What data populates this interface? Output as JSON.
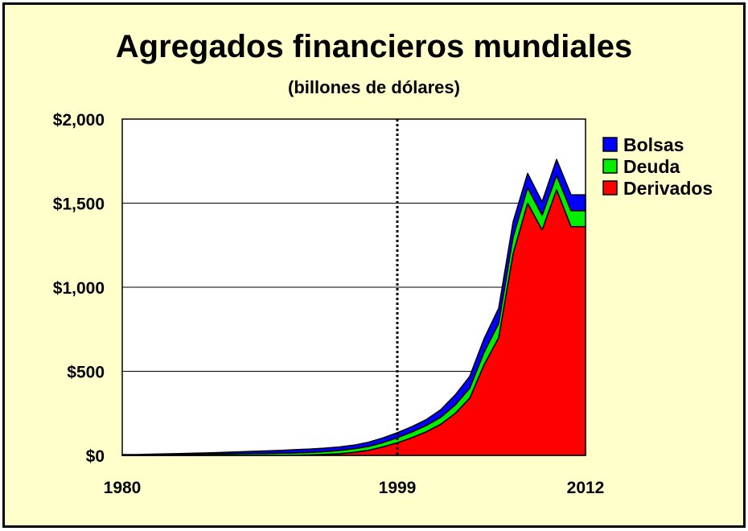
{
  "chart_data": {
    "type": "area",
    "title": "Agregados financieros mundiales",
    "subtitle": "(billones de dólares)",
    "stacked": true,
    "x": [
      1980,
      1981,
      1982,
      1983,
      1984,
      1985,
      1986,
      1987,
      1988,
      1989,
      1990,
      1991,
      1992,
      1993,
      1994,
      1995,
      1996,
      1997,
      1998,
      1999,
      2000,
      2001,
      2002,
      2003,
      2004,
      2005,
      2006,
      2007,
      2008,
      2009,
      2010,
      2011,
      2012
    ],
    "x_tick_labels": [
      "1980",
      "1999",
      "2012"
    ],
    "x_tick_values": [
      1980,
      1999,
      2012
    ],
    "y_tick_labels": [
      "$0",
      "$500",
      "$1,000",
      "$1,500",
      "$2,000"
    ],
    "y_tick_values": [
      0,
      500,
      1000,
      1500,
      2000
    ],
    "ylim": [
      0,
      2000
    ],
    "xlim": [
      1980,
      2012
    ],
    "grid": "horizontal",
    "vertical_marker": 1999,
    "legend_position": "right",
    "series": [
      {
        "name": "Derivados",
        "color": "#ff0000",
        "values": [
          0,
          0,
          0,
          0,
          0,
          0,
          0,
          0,
          0,
          0,
          0,
          0,
          1,
          3,
          6,
          10,
          18,
          30,
          50,
          75,
          105,
          140,
          185,
          250,
          340,
          540,
          700,
          1200,
          1500,
          1340,
          1580,
          1360,
          1360
        ]
      },
      {
        "name": "Deuda",
        "color": "#00ee00",
        "values": [
          3,
          3,
          4,
          5,
          6,
          7,
          8,
          9,
          10,
          11,
          12,
          13,
          14,
          15,
          17,
          19,
          21,
          23,
          26,
          30,
          34,
          38,
          42,
          50,
          60,
          75,
          85,
          100,
          92,
          88,
          85,
          95,
          95
        ]
      },
      {
        "name": "Bolsas",
        "color": "#0000ff",
        "values": [
          2,
          2,
          3,
          4,
          5,
          6,
          7,
          9,
          11,
          13,
          15,
          17,
          19,
          20,
          20,
          21,
          22,
          25,
          28,
          30,
          32,
          35,
          45,
          60,
          70,
          80,
          90,
          90,
          85,
          80,
          95,
          95,
          95
        ]
      }
    ]
  }
}
